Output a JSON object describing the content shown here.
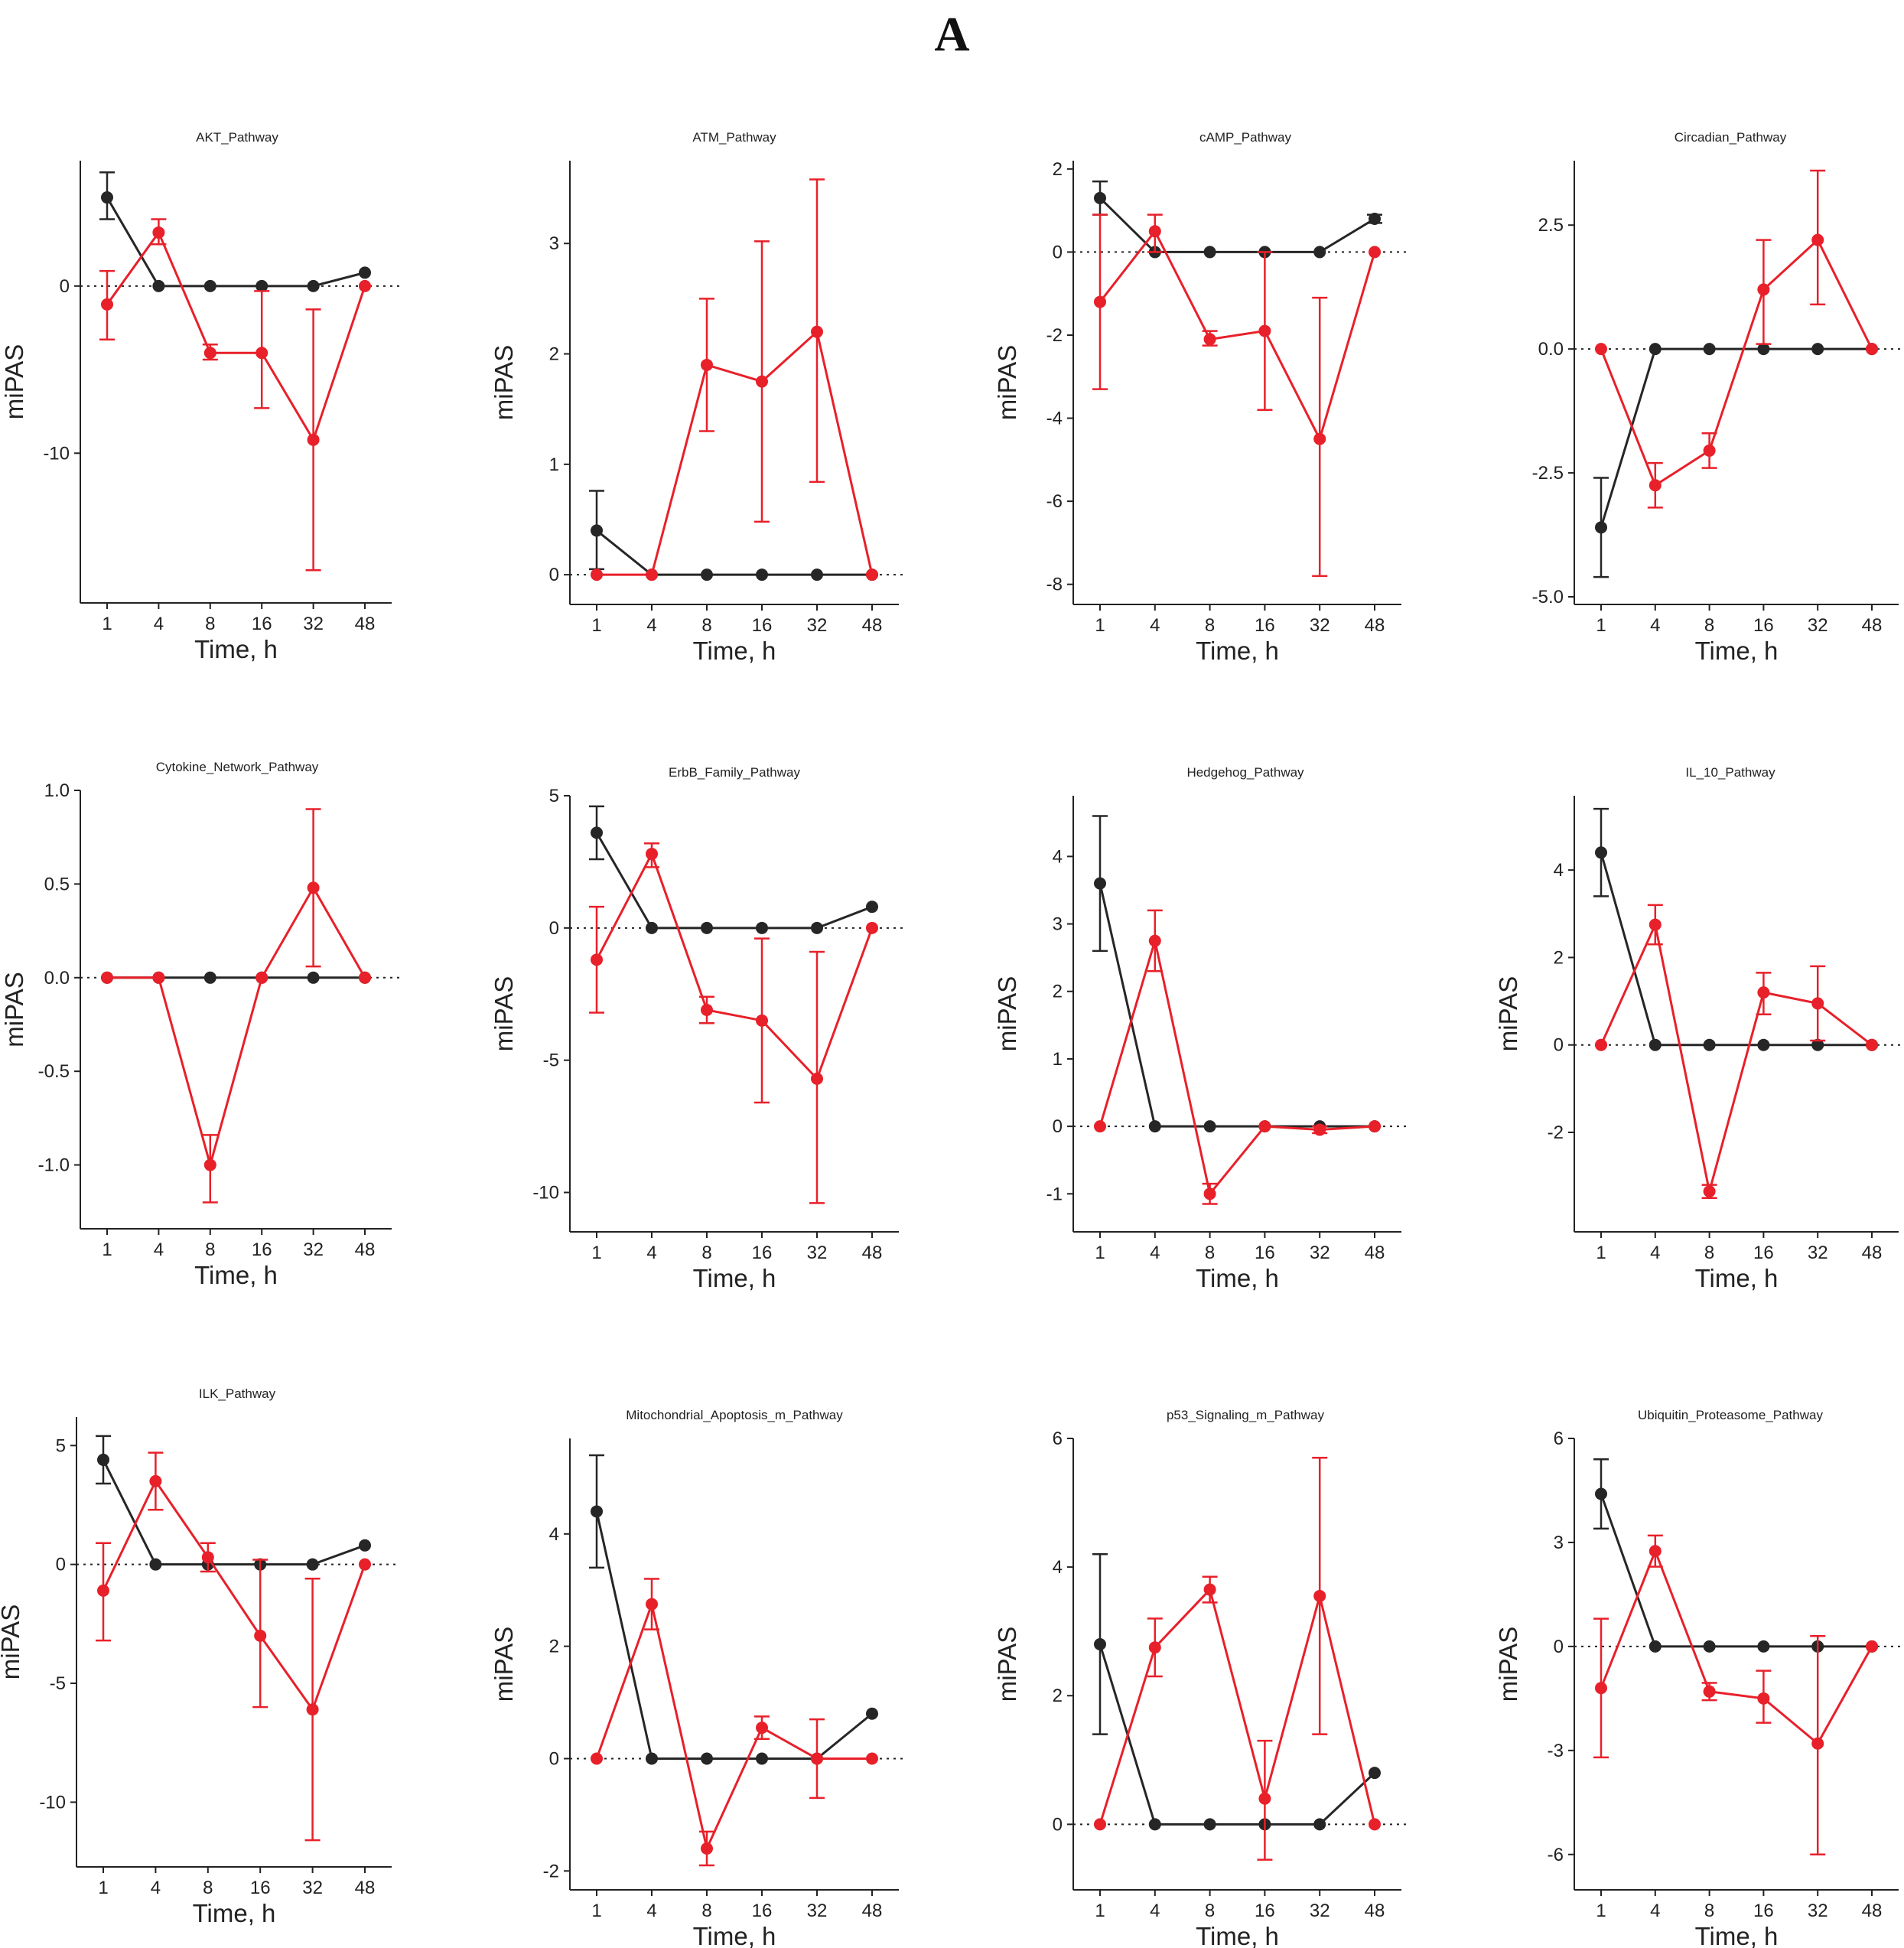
{
  "figure": {
    "panel_label": "A",
    "x_label": "Time, h",
    "y_label": "miPAS",
    "series_colors": {
      "black": "#262626",
      "red": "#e8202a"
    }
  },
  "chart_data": [
    {
      "type": "line",
      "title": "AKT_Pathway",
      "xlabel": "Time, h",
      "ylabel": "miPAS",
      "categories": [
        "1",
        "4",
        "8",
        "16",
        "32",
        "48"
      ],
      "ylim": [
        -18.5,
        7.5
      ],
      "yticks": [
        0,
        -10
      ],
      "ytick_labels": [
        "0",
        "-10"
      ],
      "series": [
        {
          "name": "black",
          "values": [
            5.3,
            0,
            0,
            0,
            0,
            0.8
          ],
          "err_low": [
            4.0,
            null,
            null,
            null,
            null,
            null
          ],
          "err_high": [
            6.8,
            null,
            null,
            null,
            null,
            null
          ]
        },
        {
          "name": "red",
          "values": [
            -1.1,
            3.2,
            -4.0,
            -4.0,
            -9.2,
            0
          ],
          "err_low": [
            -3.2,
            2.5,
            -4.4,
            -7.3,
            -17.0,
            null
          ],
          "err_high": [
            0.9,
            4.0,
            -3.5,
            -0.3,
            -1.4,
            null
          ]
        }
      ]
    },
    {
      "type": "line",
      "title": "ATM_Pathway",
      "xlabel": "Time, h",
      "ylabel": "miPAS",
      "categories": [
        "1",
        "4",
        "8",
        "16",
        "32",
        "48"
      ],
      "ylim": [
        -0.2,
        3.75
      ],
      "yticks": [
        0,
        1,
        2,
        3
      ],
      "ytick_labels": [
        "0",
        "1",
        "2",
        "3"
      ],
      "series": [
        {
          "name": "black",
          "values": [
            0.4,
            0,
            0,
            0,
            0,
            0
          ],
          "err_low": [
            0.05,
            null,
            null,
            null,
            null,
            null
          ],
          "err_high": [
            0.76,
            null,
            null,
            null,
            null,
            null
          ]
        },
        {
          "name": "red",
          "values": [
            0,
            0,
            1.9,
            1.75,
            2.2,
            0
          ],
          "err_low": [
            null,
            null,
            1.3,
            0.48,
            0.84,
            null
          ],
          "err_high": [
            null,
            null,
            2.5,
            3.02,
            3.58,
            null
          ]
        }
      ]
    },
    {
      "type": "line",
      "title": "cAMP_Pathway",
      "xlabel": "Time, h",
      "ylabel": "miPAS",
      "categories": [
        "1",
        "4",
        "8",
        "16",
        "32",
        "48"
      ],
      "ylim": [
        -8.3,
        2.2
      ],
      "yticks": [
        2,
        0,
        -2,
        -4,
        -6,
        -8
      ],
      "ytick_labels": [
        "2",
        "0",
        "-2",
        "-4",
        "-6",
        "-8"
      ],
      "series": [
        {
          "name": "black",
          "values": [
            1.3,
            0,
            0,
            0,
            0,
            0.8
          ],
          "err_low": [
            0.9,
            null,
            null,
            null,
            null,
            0.7
          ],
          "err_high": [
            1.7,
            null,
            null,
            null,
            null,
            0.9
          ]
        },
        {
          "name": "red",
          "values": [
            -1.2,
            0.5,
            -2.1,
            -1.9,
            -4.5,
            0
          ],
          "err_low": [
            -3.3,
            0.0,
            -2.25,
            -3.8,
            -7.8,
            null
          ],
          "err_high": [
            0.9,
            0.9,
            -1.9,
            0.0,
            -1.1,
            null
          ]
        }
      ]
    },
    {
      "type": "line",
      "title": "Circadian_Pathway",
      "xlabel": "Time, h",
      "ylabel": "",
      "categories": [
        "1",
        "4",
        "8",
        "16",
        "32",
        "48"
      ],
      "ylim": [
        -5.0,
        3.8
      ],
      "yticks": [
        2.5,
        0,
        -2.5,
        -5
      ],
      "ytick_labels": [
        "2.5",
        "0.0",
        "-2.5",
        "-5.0"
      ],
      "series": [
        {
          "name": "black",
          "values": [
            -3.6,
            0,
            0,
            0,
            0,
            0
          ],
          "err_low": [
            -4.6,
            null,
            null,
            null,
            null,
            null
          ],
          "err_high": [
            -2.6,
            null,
            null,
            null,
            null,
            null
          ]
        },
        {
          "name": "red",
          "values": [
            0,
            -2.75,
            -2.05,
            1.2,
            2.2,
            0
          ],
          "err_low": [
            null,
            -3.2,
            -2.4,
            0.1,
            0.9,
            null
          ],
          "err_high": [
            null,
            -2.3,
            -1.7,
            2.2,
            3.6,
            null
          ]
        }
      ]
    },
    {
      "type": "line",
      "title": "Cytokine_Network_Pathway",
      "xlabel": "Time, h",
      "ylabel": "miPAS",
      "categories": [
        "1",
        "4",
        "8",
        "16",
        "32",
        "48"
      ],
      "ylim": [
        -1.3,
        1.0
      ],
      "yticks": [
        1.0,
        0.5,
        0,
        -0.5,
        -1.0
      ],
      "ytick_labels": [
        "1.0",
        "0.5",
        "0.0",
        "-0.5",
        "-1.0"
      ],
      "series": [
        {
          "name": "black",
          "values": [
            0,
            0,
            0,
            0,
            0,
            0
          ],
          "err_low": [
            null,
            null,
            null,
            null,
            null,
            null
          ],
          "err_high": [
            null,
            null,
            null,
            null,
            null,
            null
          ]
        },
        {
          "name": "red",
          "values": [
            0,
            0,
            -1.0,
            0,
            0.48,
            0
          ],
          "err_low": [
            null,
            null,
            -1.2,
            null,
            0.06,
            null
          ],
          "err_high": [
            null,
            null,
            -0.84,
            null,
            0.9,
            null
          ]
        }
      ]
    },
    {
      "type": "line",
      "title": "ErbB_Family_Pathway",
      "xlabel": "Time, h",
      "ylabel": "miPAS",
      "categories": [
        "1",
        "4",
        "8",
        "16",
        "32",
        "48"
      ],
      "ylim": [
        -11.2,
        5.0
      ],
      "yticks": [
        5,
        0,
        -5,
        -10
      ],
      "ytick_labels": [
        "5",
        "0",
        "-5",
        "-10"
      ],
      "series": [
        {
          "name": "black",
          "values": [
            3.6,
            0,
            0,
            0,
            0,
            0.8
          ],
          "err_low": [
            2.6,
            null,
            null,
            null,
            null,
            null
          ],
          "err_high": [
            4.6,
            null,
            null,
            null,
            null,
            null
          ]
        },
        {
          "name": "red",
          "values": [
            -1.2,
            2.8,
            -3.1,
            -3.5,
            -5.7,
            0
          ],
          "err_low": [
            -3.2,
            2.3,
            -3.6,
            -6.6,
            -10.4,
            null
          ],
          "err_high": [
            0.8,
            3.2,
            -2.6,
            -0.4,
            -0.9,
            null
          ]
        }
      ]
    },
    {
      "type": "line",
      "title": "Hedgehog_Pathway",
      "xlabel": "Time, h",
      "ylabel": "miPAS",
      "categories": [
        "1",
        "4",
        "8",
        "16",
        "32",
        "48"
      ],
      "ylim": [
        -1.45,
        4.9
      ],
      "yticks": [
        4,
        3,
        2,
        1,
        0,
        -1
      ],
      "ytick_labels": [
        "4",
        "3",
        "2",
        "1",
        "0",
        "-1"
      ],
      "series": [
        {
          "name": "black",
          "values": [
            3.6,
            0,
            0,
            0,
            0,
            0
          ],
          "err_low": [
            2.6,
            null,
            null,
            null,
            null,
            null
          ],
          "err_high": [
            4.6,
            null,
            null,
            null,
            null,
            null
          ]
        },
        {
          "name": "red",
          "values": [
            0,
            2.75,
            -1.0,
            0,
            -0.05,
            0
          ],
          "err_low": [
            null,
            2.3,
            -1.15,
            null,
            -0.1,
            null
          ],
          "err_high": [
            null,
            3.2,
            -0.85,
            null,
            0.0,
            null
          ]
        }
      ]
    },
    {
      "type": "line",
      "title": "IL_10_Pathway",
      "xlabel": "Time, h",
      "ylabel": "miPAS",
      "categories": [
        "1",
        "4",
        "8",
        "16",
        "32",
        "48"
      ],
      "ylim": [
        -4.1,
        5.7
      ],
      "yticks": [
        4,
        2,
        0,
        -2
      ],
      "ytick_labels": [
        "4",
        "2",
        "0",
        "-2"
      ],
      "series": [
        {
          "name": "black",
          "values": [
            4.4,
            0,
            0,
            0,
            0,
            0
          ],
          "err_low": [
            3.4,
            null,
            null,
            null,
            null,
            null
          ],
          "err_high": [
            5.4,
            null,
            null,
            null,
            null,
            null
          ]
        },
        {
          "name": "red",
          "values": [
            0,
            2.75,
            -3.35,
            1.2,
            0.95,
            0
          ],
          "err_low": [
            null,
            2.3,
            -3.5,
            0.7,
            0.1,
            null
          ],
          "err_high": [
            null,
            3.2,
            -3.2,
            1.65,
            1.8,
            null
          ]
        }
      ]
    },
    {
      "type": "line",
      "title": "ILK_Pathway",
      "xlabel": "Time, h",
      "ylabel": "miPAS",
      "categories": [
        "1",
        "4",
        "8",
        "16",
        "32",
        "48"
      ],
      "ylim": [
        -12.4,
        6.2
      ],
      "yticks": [
        5,
        0,
        -5,
        -10
      ],
      "ytick_labels": [
        "5",
        "0",
        "-5",
        "-10"
      ],
      "series": [
        {
          "name": "black",
          "values": [
            4.4,
            0,
            0,
            0,
            0,
            0.8
          ],
          "err_low": [
            3.4,
            null,
            null,
            null,
            null,
            null
          ],
          "err_high": [
            5.4,
            null,
            null,
            null,
            null,
            null
          ]
        },
        {
          "name": "red",
          "values": [
            -1.1,
            3.5,
            0.3,
            -3.0,
            -6.1,
            0
          ],
          "err_low": [
            -3.2,
            2.3,
            -0.3,
            -6.0,
            -11.6,
            null
          ],
          "err_high": [
            0.9,
            4.7,
            0.9,
            0.2,
            -0.6,
            null
          ]
        }
      ]
    },
    {
      "type": "line",
      "title": "Mitochondrial_Apoptosis_m_Pathway",
      "xlabel": "Time, h",
      "ylabel": "miPAS",
      "categories": [
        "1",
        "4",
        "8",
        "16",
        "32",
        "48"
      ],
      "ylim": [
        -2.2,
        5.7
      ],
      "yticks": [
        4,
        2,
        0,
        -2
      ],
      "ytick_labels": [
        "4",
        "2",
        "0",
        "-2"
      ],
      "series": [
        {
          "name": "black",
          "values": [
            4.4,
            0,
            0,
            0,
            0,
            0.8
          ],
          "err_low": [
            3.4,
            null,
            null,
            null,
            null,
            null
          ],
          "err_high": [
            5.4,
            null,
            null,
            null,
            null,
            null
          ]
        },
        {
          "name": "red",
          "values": [
            0,
            2.75,
            -1.6,
            0.55,
            0,
            0
          ],
          "err_low": [
            null,
            2.3,
            -1.9,
            0.35,
            -0.7,
            null
          ],
          "err_high": [
            null,
            3.2,
            -1.3,
            0.75,
            0.7,
            null
          ]
        }
      ]
    },
    {
      "type": "line",
      "title": "p53_Signaling_m_Pathway",
      "xlabel": "Time, h",
      "ylabel": "miPAS",
      "categories": [
        "1",
        "4",
        "8",
        "16",
        "32",
        "48"
      ],
      "ylim": [
        -0.9,
        6.0
      ],
      "yticks": [
        6,
        4,
        2,
        0
      ],
      "ytick_labels": [
        "6",
        "4",
        "2",
        "0"
      ],
      "series": [
        {
          "name": "black",
          "values": [
            2.8,
            0,
            0,
            0,
            0,
            0.8
          ],
          "err_low": [
            1.4,
            null,
            null,
            null,
            null,
            null
          ],
          "err_high": [
            4.2,
            null,
            null,
            null,
            null,
            null
          ]
        },
        {
          "name": "red",
          "values": [
            0,
            2.75,
            3.65,
            0.4,
            3.55,
            0
          ],
          "err_low": [
            null,
            2.3,
            3.45,
            -0.55,
            1.4,
            null
          ],
          "err_high": [
            null,
            3.2,
            3.85,
            1.3,
            5.7,
            null
          ]
        }
      ]
    },
    {
      "type": "line",
      "title": "Ubiquitin_Proteasome_Pathway",
      "xlabel": "Time, h",
      "ylabel": "miPAS",
      "categories": [
        "1",
        "4",
        "8",
        "16",
        "32",
        "48"
      ],
      "ylim": [
        -6.8,
        6.0
      ],
      "yticks": [
        6,
        3,
        0,
        -3,
        -6
      ],
      "ytick_labels": [
        "6",
        "3",
        "0",
        "-3",
        "-6"
      ],
      "series": [
        {
          "name": "black",
          "values": [
            4.4,
            0,
            0,
            0,
            0,
            0
          ],
          "err_low": [
            3.4,
            null,
            null,
            null,
            null,
            null
          ],
          "err_high": [
            5.4,
            null,
            null,
            null,
            null,
            null
          ]
        },
        {
          "name": "red",
          "values": [
            -1.2,
            2.75,
            -1.3,
            -1.5,
            -2.8,
            0
          ],
          "err_low": [
            -3.2,
            2.3,
            -1.55,
            -2.2,
            -6.0,
            null
          ],
          "err_high": [
            0.8,
            3.2,
            -1.05,
            -0.7,
            0.3,
            null
          ]
        }
      ]
    }
  ]
}
